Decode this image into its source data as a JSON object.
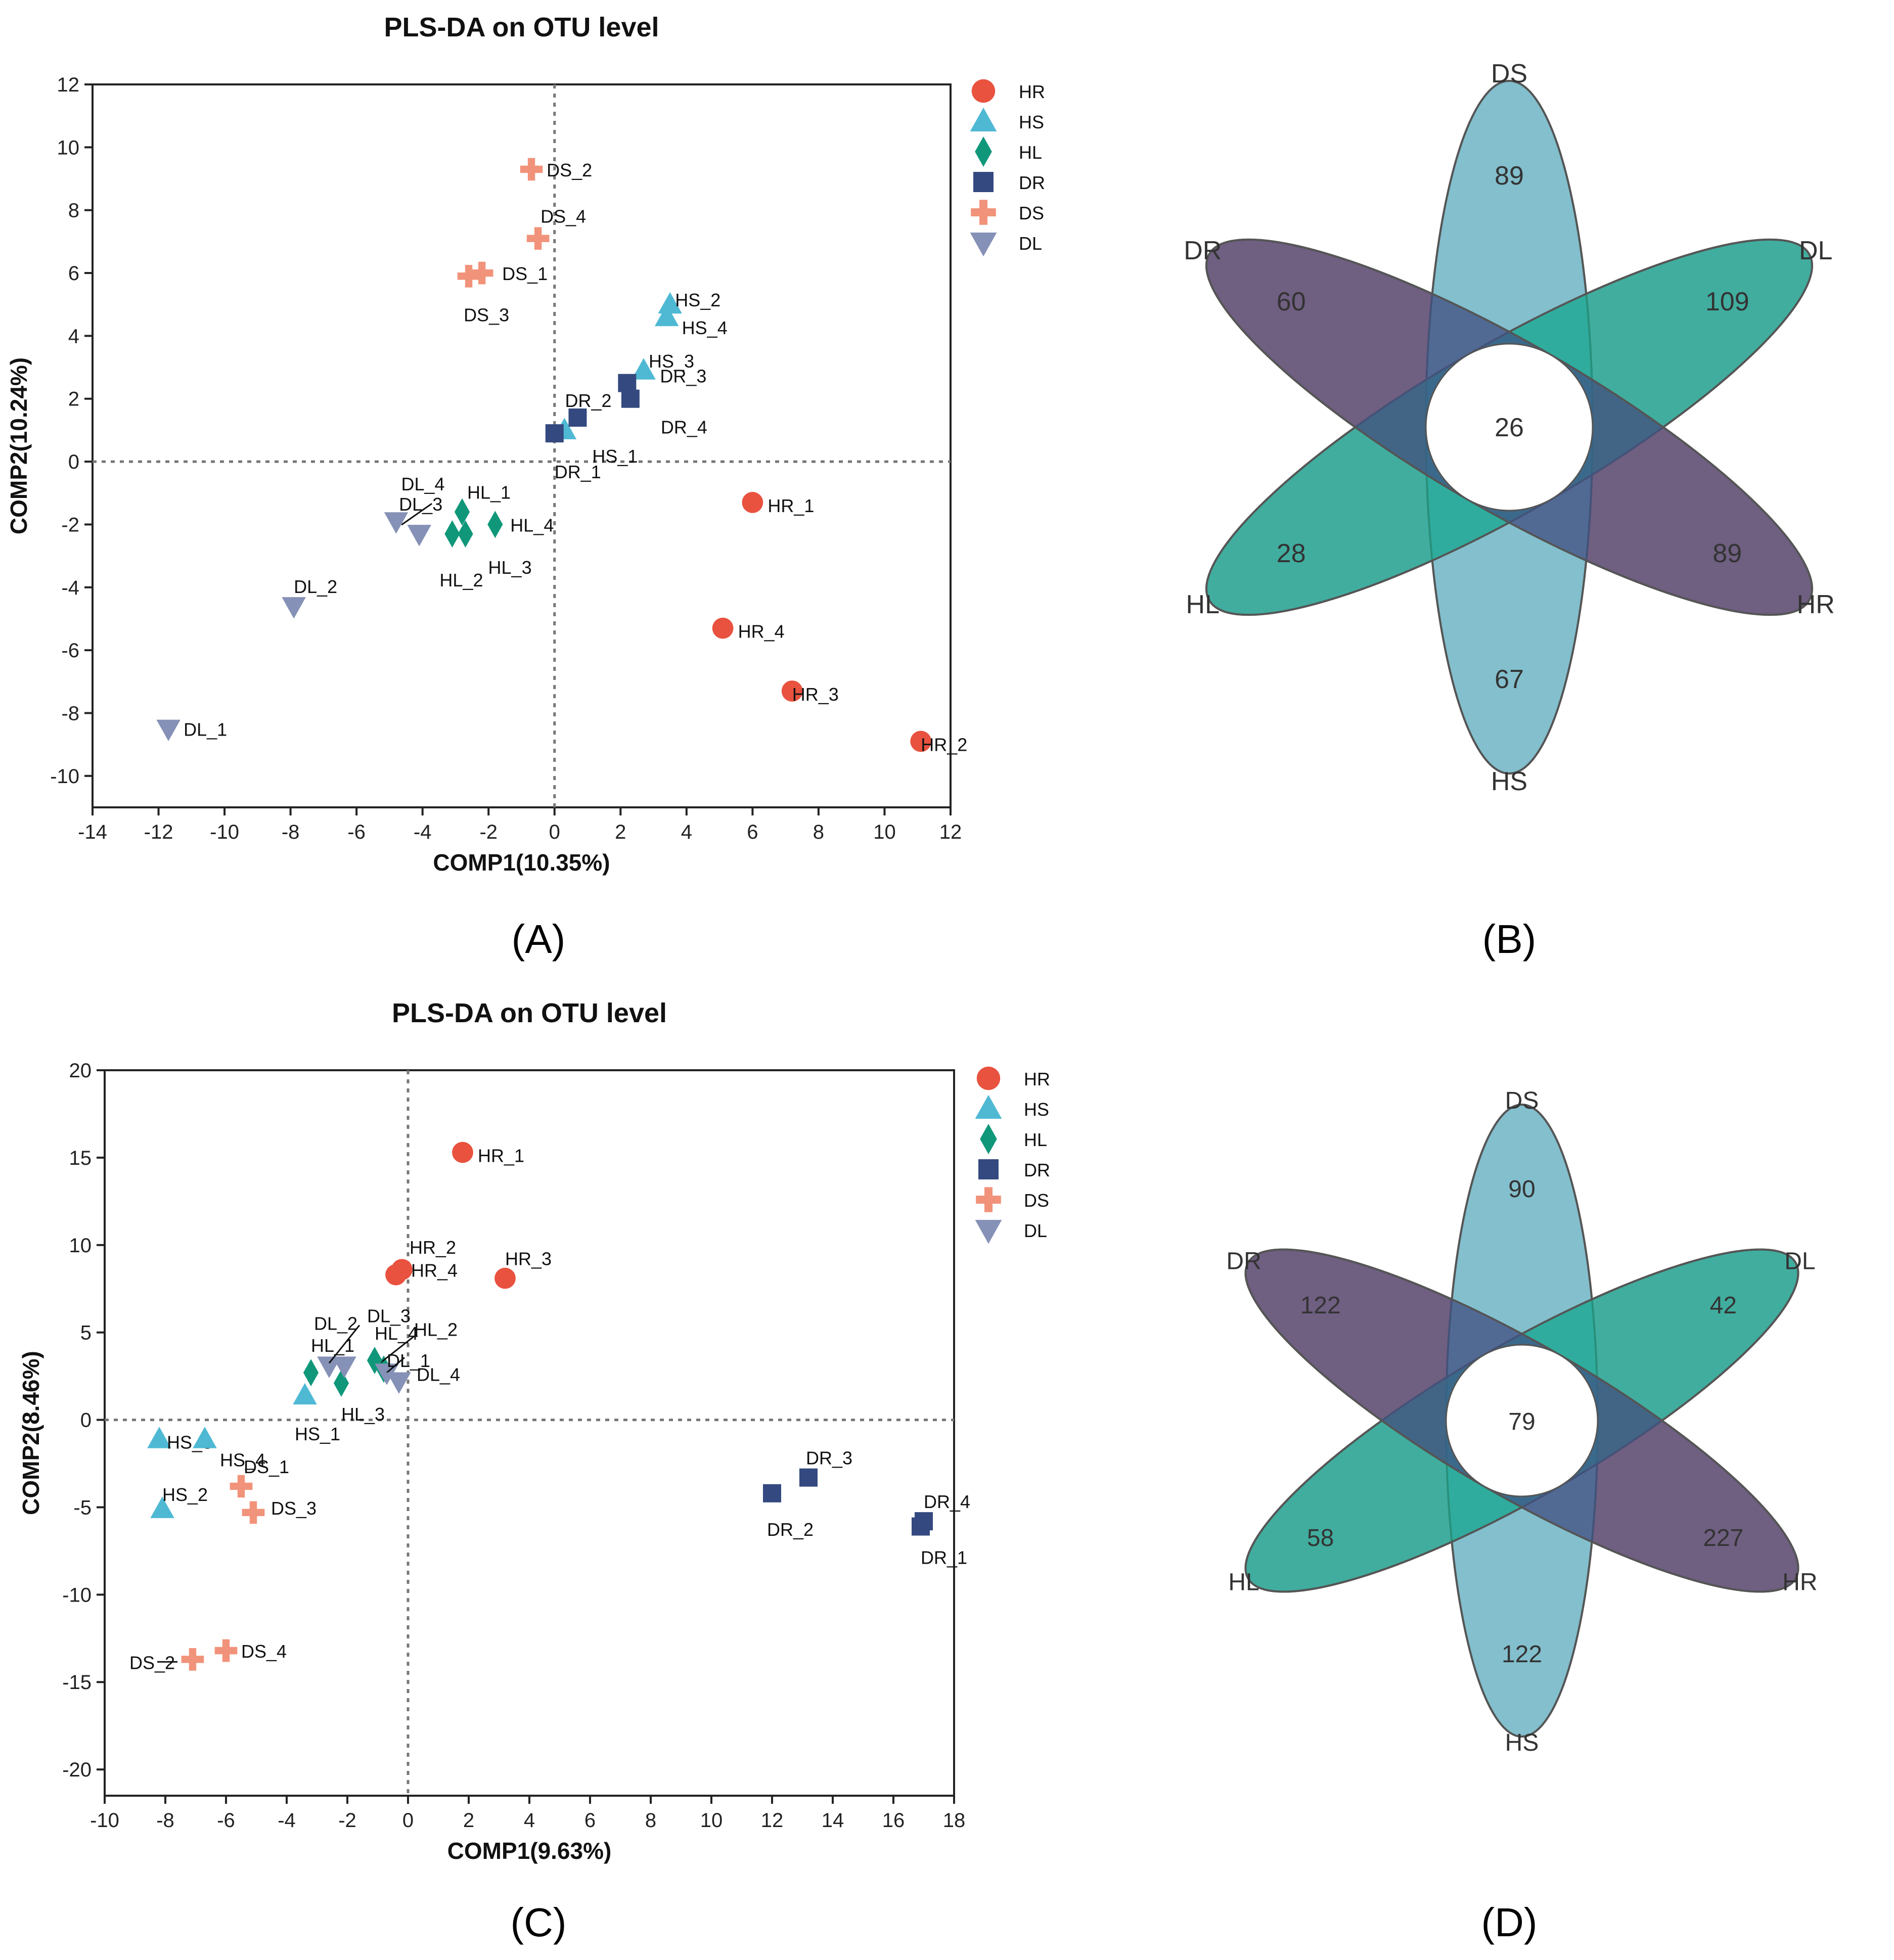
{
  "panels": {
    "A": {
      "label": "(A)"
    },
    "B": {
      "label": "(B)"
    },
    "C": {
      "label": "(C)"
    },
    "D": {
      "label": "(D)"
    }
  },
  "legend": [
    {
      "name": "HR",
      "marker": "circle",
      "color": "#e8523f"
    },
    {
      "name": "HS",
      "marker": "triangle-up",
      "color": "#4fb9d4"
    },
    {
      "name": "HL",
      "marker": "diamond",
      "color": "#10977a"
    },
    {
      "name": "DR",
      "marker": "square",
      "color": "#34497f"
    },
    {
      "name": "DS",
      "marker": "plus",
      "color": "#f1937a"
    },
    {
      "name": "DL",
      "marker": "triangle-down",
      "color": "#8591b6"
    }
  ],
  "chart_data": [
    {
      "id": "A",
      "type": "scatter",
      "title": "PLS-DA on OTU level",
      "xlabel": "COMP1(10.35%)",
      "ylabel": "COMP2(10.24%)",
      "xlim": [
        -14,
        12
      ],
      "ylim": [
        -11,
        12
      ],
      "xticks": [
        -14,
        -12,
        -10,
        -8,
        -6,
        -4,
        -2,
        0,
        2,
        4,
        6,
        8,
        10,
        12
      ],
      "yticks": [
        -10,
        -8,
        -6,
        -4,
        -2,
        0,
        2,
        4,
        6,
        8,
        10,
        12
      ],
      "points": [
        {
          "group": "HR",
          "label": "HR_1",
          "x": 6.0,
          "y": -1.3
        },
        {
          "group": "HR",
          "label": "HR_2",
          "x": 11.1,
          "y": -8.9
        },
        {
          "group": "HR",
          "label": "HR_3",
          "x": 7.2,
          "y": -7.3
        },
        {
          "group": "HR",
          "label": "HR_4",
          "x": 5.1,
          "y": -5.3
        },
        {
          "group": "HS",
          "label": "HS_1",
          "x": 0.3,
          "y": 1.0
        },
        {
          "group": "HS",
          "label": "HS_2",
          "x": 3.5,
          "y": 5.0
        },
        {
          "group": "HS",
          "label": "HS_3",
          "x": 2.7,
          "y": 2.9
        },
        {
          "group": "HS",
          "label": "HS_4",
          "x": 3.4,
          "y": 4.6
        },
        {
          "group": "HL",
          "label": "HL_1",
          "x": -2.8,
          "y": -1.6
        },
        {
          "group": "HL",
          "label": "HL_2",
          "x": -3.1,
          "y": -2.3
        },
        {
          "group": "HL",
          "label": "HL_3",
          "x": -2.7,
          "y": -2.3
        },
        {
          "group": "HL",
          "label": "HL_4",
          "x": -1.8,
          "y": -2.0
        },
        {
          "group": "DR",
          "label": "DR_1",
          "x": 0.0,
          "y": 0.9
        },
        {
          "group": "DR",
          "label": "DR_2",
          "x": 0.7,
          "y": 1.4
        },
        {
          "group": "DR",
          "label": "DR_3",
          "x": 2.2,
          "y": 2.5
        },
        {
          "group": "DR",
          "label": "DR_4",
          "x": 2.3,
          "y": 2.0
        },
        {
          "group": "DS",
          "label": "DS_1",
          "x": -2.2,
          "y": 6.0
        },
        {
          "group": "DS",
          "label": "DS_2",
          "x": -0.7,
          "y": 9.3
        },
        {
          "group": "DS",
          "label": "DS_3",
          "x": -2.6,
          "y": 5.9
        },
        {
          "group": "DS",
          "label": "DS_4",
          "x": -0.5,
          "y": 7.1
        },
        {
          "group": "DL",
          "label": "DL_1",
          "x": -11.7,
          "y": -8.5
        },
        {
          "group": "DL",
          "label": "DL_2",
          "x": -7.9,
          "y": -4.6
        },
        {
          "group": "DL",
          "label": "DL_3",
          "x": -4.1,
          "y": -2.3
        },
        {
          "group": "DL",
          "label": "DL_4",
          "x": -4.8,
          "y": -1.9
        }
      ]
    },
    {
      "id": "C",
      "type": "scatter",
      "title": "PLS-DA on OTU level",
      "xlabel": "COMP1(9.63%)",
      "ylabel": "COMP2(8.46%)",
      "xlim": [
        -10,
        18
      ],
      "ylim": [
        -21.5,
        20
      ],
      "xticks": [
        -10,
        -8,
        -6,
        -4,
        -2,
        0,
        2,
        4,
        6,
        8,
        10,
        12,
        14,
        16,
        18
      ],
      "yticks": [
        -20,
        -15,
        -10,
        -5,
        0,
        5,
        10,
        15,
        20
      ],
      "points": [
        {
          "group": "HR",
          "label": "HR_1",
          "x": 1.8,
          "y": 15.3
        },
        {
          "group": "HR",
          "label": "HR_2",
          "x": -0.2,
          "y": 8.6
        },
        {
          "group": "HR",
          "label": "HR_3",
          "x": 3.2,
          "y": 8.1
        },
        {
          "group": "HR",
          "label": "HR_4",
          "x": -0.4,
          "y": 8.3
        },
        {
          "group": "HS",
          "label": "HS_1",
          "x": -3.4,
          "y": 1.4
        },
        {
          "group": "HS",
          "label": "HS_2",
          "x": -8.1,
          "y": -5.1
        },
        {
          "group": "HS",
          "label": "HS_3",
          "x": -8.2,
          "y": -1.1
        },
        {
          "group": "HS",
          "label": "HS_4",
          "x": -6.7,
          "y": -1.1
        },
        {
          "group": "HL",
          "label": "HL_1",
          "x": -3.2,
          "y": 2.7
        },
        {
          "group": "HL",
          "label": "HL_2",
          "x": -0.8,
          "y": 2.9
        },
        {
          "group": "HL",
          "label": "HL_3",
          "x": -2.2,
          "y": 2.1
        },
        {
          "group": "HL",
          "label": "HL_4",
          "x": -1.1,
          "y": 3.4
        },
        {
          "group": "DR",
          "label": "DR_1",
          "x": 16.9,
          "y": -6.1
        },
        {
          "group": "DR",
          "label": "DR_2",
          "x": 12.0,
          "y": -4.2
        },
        {
          "group": "DR",
          "label": "DR_3",
          "x": 13.2,
          "y": -3.3
        },
        {
          "group": "DR",
          "label": "DR_4",
          "x": 17.0,
          "y": -5.8
        },
        {
          "group": "DS",
          "label": "DS_1",
          "x": -5.5,
          "y": -3.8
        },
        {
          "group": "DS",
          "label": "DS_2",
          "x": -7.1,
          "y": -13.7
        },
        {
          "group": "DS",
          "label": "DS_3",
          "x": -5.1,
          "y": -5.3
        },
        {
          "group": "DS",
          "label": "DS_4",
          "x": -6.0,
          "y": -13.2
        },
        {
          "group": "DL",
          "label": "DL_1",
          "x": -0.7,
          "y": 2.7
        },
        {
          "group": "DL",
          "label": "DL_2",
          "x": -2.6,
          "y": 3.1
        },
        {
          "group": "DL",
          "label": "DL_3",
          "x": -2.1,
          "y": 3.1
        },
        {
          "group": "DL",
          "label": "DL_4",
          "x": -0.3,
          "y": 2.2
        }
      ]
    },
    {
      "id": "B",
      "type": "flower-venn",
      "sets": [
        "DS",
        "DL",
        "HR",
        "HS",
        "HL",
        "DR"
      ],
      "unique_counts": {
        "DS": 89,
        "DL": 109,
        "HR": 89,
        "HS": 67,
        "HL": 28,
        "DR": 60
      },
      "core": 26
    },
    {
      "id": "D",
      "type": "flower-venn",
      "sets": [
        "DS",
        "DL",
        "HR",
        "HS",
        "HL",
        "DR"
      ],
      "unique_counts": {
        "DS": 90,
        "DL": 42,
        "HR": 227,
        "HS": 122,
        "HL": 58,
        "DR": 122
      },
      "core": 79
    }
  ]
}
